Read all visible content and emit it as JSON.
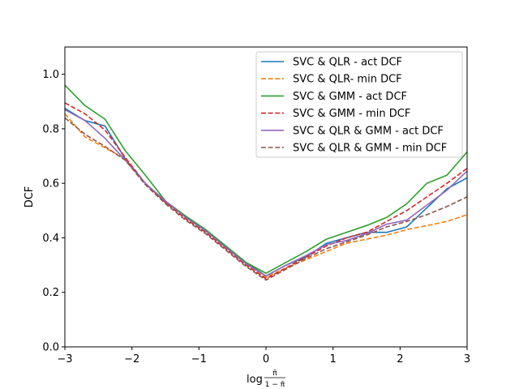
{
  "chart_data": {
    "type": "line",
    "title": "",
    "xlabel": "log",
    "xlabel_fraction": {
      "numerator": "π̃",
      "denominator": "1 − π̃"
    },
    "ylabel": "DCF",
    "xlim": [
      -3,
      3
    ],
    "ylim": [
      0,
      1.1
    ],
    "x_ticks": [
      -3,
      -2,
      -1,
      0,
      1,
      2,
      3
    ],
    "x_tick_labels": [
      "−3",
      "−2",
      "−1",
      "0",
      "1",
      "2",
      "3"
    ],
    "y_ticks": [
      0.0,
      0.2,
      0.4,
      0.6,
      0.8,
      1.0
    ],
    "y_tick_labels": [
      "0.0",
      "0.2",
      "0.4",
      "0.6",
      "0.8",
      "1.0"
    ],
    "grid": false,
    "legend_position": "top-right",
    "series": [
      {
        "name": "SVC & QLR - act DCF",
        "color": "#1f77b4",
        "dash": "solid",
        "x": [
          -3,
          -2.7,
          -2.4,
          -2.1,
          -1.8,
          -1.5,
          -1.2,
          -0.9,
          -0.6,
          -0.3,
          0,
          0.3,
          0.6,
          0.9,
          1.2,
          1.5,
          1.8,
          2.1,
          2.4,
          2.7,
          3
        ],
        "y": [
          0.875,
          0.83,
          0.81,
          0.69,
          0.6,
          0.53,
          0.48,
          0.43,
          0.37,
          0.31,
          0.26,
          0.3,
          0.33,
          0.38,
          0.4,
          0.42,
          0.42,
          0.44,
          0.51,
          0.58,
          0.62
        ]
      },
      {
        "name": "SVC & QLR- min DCF",
        "color": "#ff7f0e",
        "dash": "dashed",
        "x": [
          -3,
          -2.7,
          -2.4,
          -2.1,
          -1.8,
          -1.5,
          -1.2,
          -0.9,
          -0.6,
          -0.3,
          0,
          0.3,
          0.6,
          0.9,
          1.2,
          1.5,
          1.8,
          2.1,
          2.4,
          2.7,
          3
        ],
        "y": [
          0.855,
          0.77,
          0.73,
          0.69,
          0.6,
          0.53,
          0.47,
          0.42,
          0.36,
          0.3,
          0.255,
          0.29,
          0.32,
          0.35,
          0.38,
          0.395,
          0.41,
          0.43,
          0.445,
          0.46,
          0.485
        ]
      },
      {
        "name": "SVC & GMM - act DCF",
        "color": "#2ca02c",
        "dash": "solid",
        "x": [
          -3,
          -2.7,
          -2.4,
          -2.1,
          -1.8,
          -1.5,
          -1.2,
          -0.9,
          -0.6,
          -0.3,
          0,
          0.3,
          0.6,
          0.9,
          1.2,
          1.5,
          1.8,
          2.1,
          2.4,
          2.7,
          3
        ],
        "y": [
          0.96,
          0.885,
          0.835,
          0.72,
          0.63,
          0.535,
          0.48,
          0.43,
          0.37,
          0.31,
          0.27,
          0.31,
          0.35,
          0.395,
          0.42,
          0.445,
          0.475,
          0.525,
          0.6,
          0.63,
          0.715
        ]
      },
      {
        "name": "SVC & GMM - min DCF",
        "color": "#d62728",
        "dash": "dashed",
        "x": [
          -3,
          -2.7,
          -2.4,
          -2.1,
          -1.8,
          -1.5,
          -1.2,
          -0.9,
          -0.6,
          -0.3,
          0,
          0.3,
          0.6,
          0.9,
          1.2,
          1.5,
          1.8,
          2.1,
          2.4,
          2.7,
          3
        ],
        "y": [
          0.895,
          0.855,
          0.795,
          0.695,
          0.6,
          0.53,
          0.47,
          0.42,
          0.36,
          0.3,
          0.25,
          0.29,
          0.33,
          0.37,
          0.4,
          0.42,
          0.46,
          0.5,
          0.55,
          0.6,
          0.655
        ]
      },
      {
        "name": "SVC & QLR & GMM - act DCF",
        "color": "#9467bd",
        "dash": "solid",
        "x": [
          -3,
          -2.7,
          -2.4,
          -2.1,
          -1.8,
          -1.5,
          -1.2,
          -0.9,
          -0.6,
          -0.3,
          0,
          0.3,
          0.6,
          0.9,
          1.2,
          1.5,
          1.8,
          2.1,
          2.4,
          2.7,
          3
        ],
        "y": [
          0.87,
          0.83,
          0.765,
          0.685,
          0.6,
          0.535,
          0.475,
          0.425,
          0.365,
          0.305,
          0.26,
          0.3,
          0.335,
          0.375,
          0.39,
          0.415,
          0.45,
          0.465,
          0.52,
          0.575,
          0.645
        ]
      },
      {
        "name": "SVC & QLR & GMM - min DCF",
        "color": "#8c564b",
        "dash": "dashed",
        "x": [
          -3,
          -2.7,
          -2.4,
          -2.1,
          -1.8,
          -1.5,
          -1.2,
          -0.9,
          -0.6,
          -0.3,
          0,
          0.3,
          0.6,
          0.9,
          1.2,
          1.5,
          1.8,
          2.1,
          2.4,
          2.7,
          3
        ],
        "y": [
          0.84,
          0.78,
          0.735,
          0.685,
          0.595,
          0.525,
          0.465,
          0.415,
          0.355,
          0.295,
          0.245,
          0.285,
          0.325,
          0.36,
          0.385,
          0.41,
          0.44,
          0.46,
          0.485,
          0.515,
          0.55
        ]
      }
    ]
  }
}
